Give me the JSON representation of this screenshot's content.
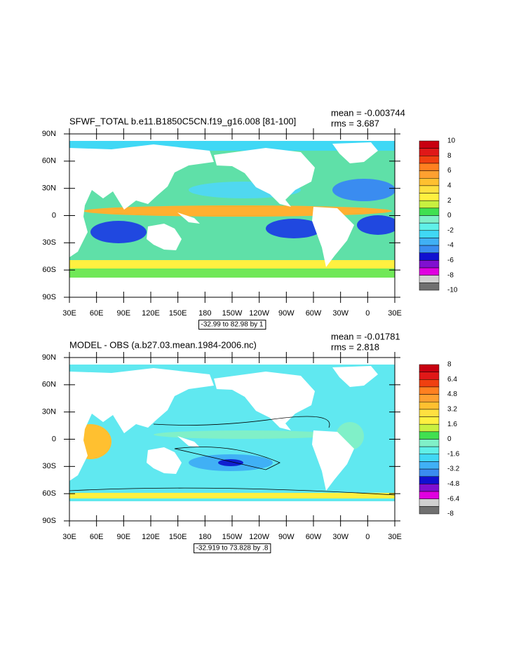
{
  "panels": [
    {
      "title": "SFWF_TOTAL b.e11.B1850C5CN.f19_g16.008 [81-100]",
      "mean": "mean = -0.003744",
      "rms": "rms = 3.687",
      "lat_labels": [
        "90N",
        "60N",
        "30N",
        "0",
        "30S",
        "60S",
        "90S"
      ],
      "lon_labels": [
        "30E",
        "60E",
        "90E",
        "120E",
        "150E",
        "180",
        "150W",
        "120W",
        "90W",
        "60W",
        "30W",
        "0",
        "30E"
      ],
      "range_label": "-32.99 to 82.98 by 1",
      "colorbar_labels": [
        "10",
        "8",
        "6",
        "4",
        "2",
        "0",
        "-2",
        "-4",
        "-6",
        "-8",
        "-10"
      ],
      "colorbar_colors": [
        "#c80010",
        "#e01818",
        "#f04010",
        "#ff8020",
        "#ffa030",
        "#ffc030",
        "#ffe040",
        "#fff040",
        "#c8f040",
        "#40e050",
        "#80f0c8",
        "#60f0e8",
        "#40d8f5",
        "#40b0f5",
        "#3a8cf0",
        "#1010d0",
        "#8010d0",
        "#e000e0",
        "#d0d0d0",
        "#707070"
      ]
    },
    {
      "title": "MODEL - OBS (a.b27.03.mean.1984-2006.nc)",
      "mean": "mean = -0.01781",
      "rms": "rms = 2.818",
      "lat_labels": [
        "90N",
        "60N",
        "30N",
        "0",
        "30S",
        "60S",
        "90S"
      ],
      "lon_labels": [
        "30E",
        "60E",
        "90E",
        "120E",
        "150E",
        "180",
        "150W",
        "120W",
        "90W",
        "60W",
        "30W",
        "0",
        "30E"
      ],
      "range_label": "-32.919 to 73.828 by .8",
      "colorbar_labels": [
        "8",
        "6.4",
        "4.8",
        "3.2",
        "1.6",
        "0",
        "-1.6",
        "-3.2",
        "-4.8",
        "-6.4",
        "-8"
      ],
      "colorbar_colors": [
        "#c80010",
        "#e01818",
        "#f04010",
        "#ff8020",
        "#ffa030",
        "#ffc030",
        "#ffe040",
        "#fff040",
        "#c8f040",
        "#40e050",
        "#80f0c8",
        "#60f0e8",
        "#40d8f5",
        "#40b0f5",
        "#3a8cf0",
        "#1010d0",
        "#8010d0",
        "#e000e0",
        "#d0d0d0",
        "#707070"
      ]
    }
  ]
}
